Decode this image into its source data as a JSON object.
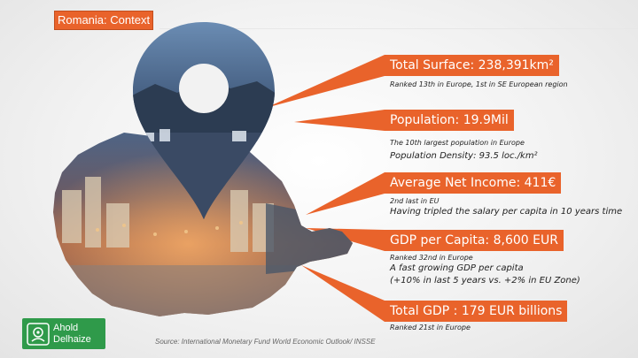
{
  "slide": {
    "title": "Romania: Context",
    "source": "Source: International Monetary Fund World Economic Outlook/ INSSE"
  },
  "brand": {
    "line1": "Ahold",
    "line2": "Delhaize",
    "color": "#2f9a4a"
  },
  "accent_color": "#e9632b",
  "stats": [
    {
      "label": "Total Surface: 238,391km²",
      "note_small": "Ranked 13th in Europe, 1st in SE European region",
      "note_big": ""
    },
    {
      "label": "Population: 19.9Mil",
      "note_small": "The 10th largest population in Europe",
      "note_big": "Population Density: 93.5 loc./km²"
    },
    {
      "label": "Average Net Income: 411€",
      "note_small": "2nd last in EU",
      "note_big": "Having tripled the salary per capita in 10 years time"
    },
    {
      "label": "GDP per Capita: 8,600 EUR",
      "note_small": "Ranked 32nd  in Europe",
      "note_big": "A fast growing GDP per capita",
      "note_big2": "(+10% in last 5 years vs. +2% in EU Zone)"
    },
    {
      "label": "Total GDP : 179 EUR billions",
      "note_small": "Ranked 21st  in Europe",
      "note_big": ""
    }
  ],
  "icons": {
    "pin": "map-pin-icon",
    "country": "romania-map-photo",
    "logo": "ahold-delhaize-logo-icon"
  }
}
